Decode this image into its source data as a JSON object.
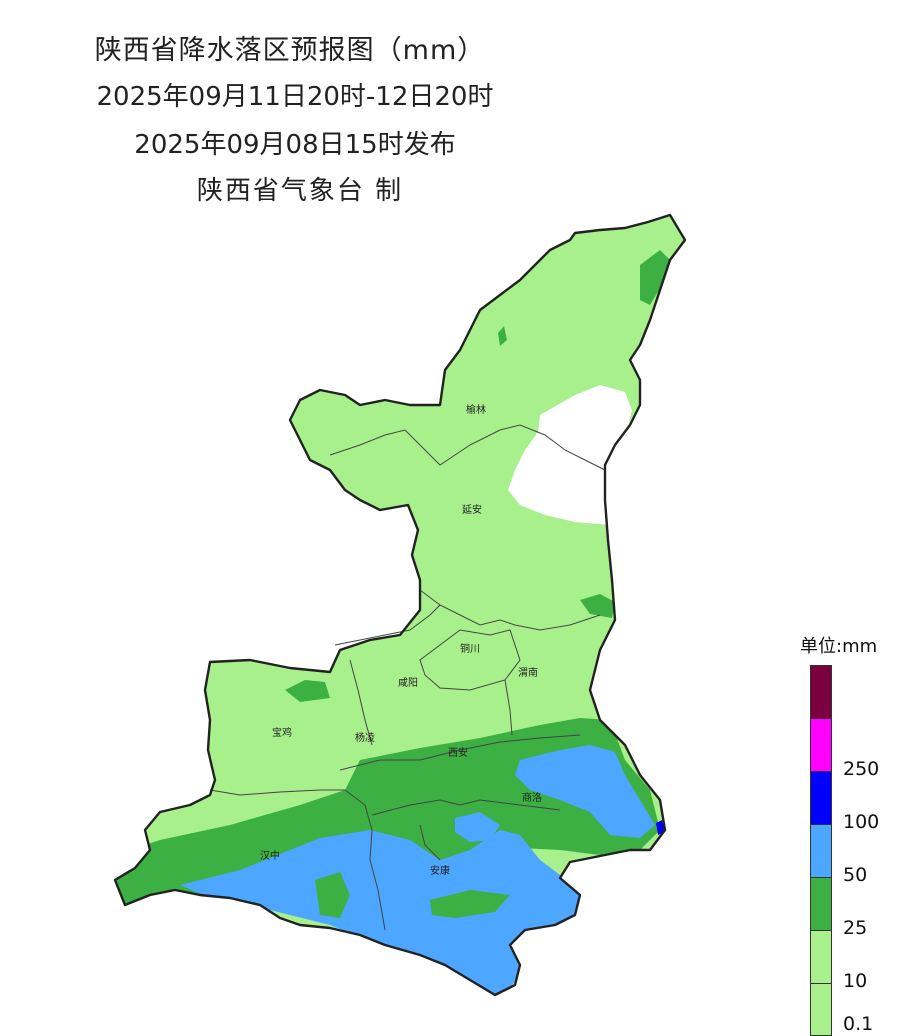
{
  "header": {
    "title": "陕西省降水落区预报图（mm）",
    "period": "2025年09月11日20时-12日20时",
    "issued": "2025年09月08日15时发布",
    "producer": "陕西省气象台 制"
  },
  "cities": [
    "榆林",
    "延安",
    "铜川",
    "咸阳",
    "渭南",
    "宝鸡",
    "杨凌",
    "西安",
    "商洛",
    "汉中",
    "安康"
  ],
  "legend": {
    "title": "单位:mm",
    "items": [
      {
        "color": "#7a0040",
        "label": ""
      },
      {
        "color": "#ff00ff",
        "label": "250"
      },
      {
        "color": "#0000ff",
        "label": "100"
      },
      {
        "color": "#4da6ff",
        "label": "50"
      },
      {
        "color": "#3cb043",
        "label": "25"
      },
      {
        "color": "#a8f08c",
        "label": "10"
      },
      {
        "color": "#a8f08c",
        "label": "0.1"
      }
    ]
  },
  "colors": {
    "light_green": "#a8f08c",
    "green": "#3cb043",
    "blue": "#4da6ff",
    "dark_blue": "#0000ff",
    "border": "#222222"
  }
}
